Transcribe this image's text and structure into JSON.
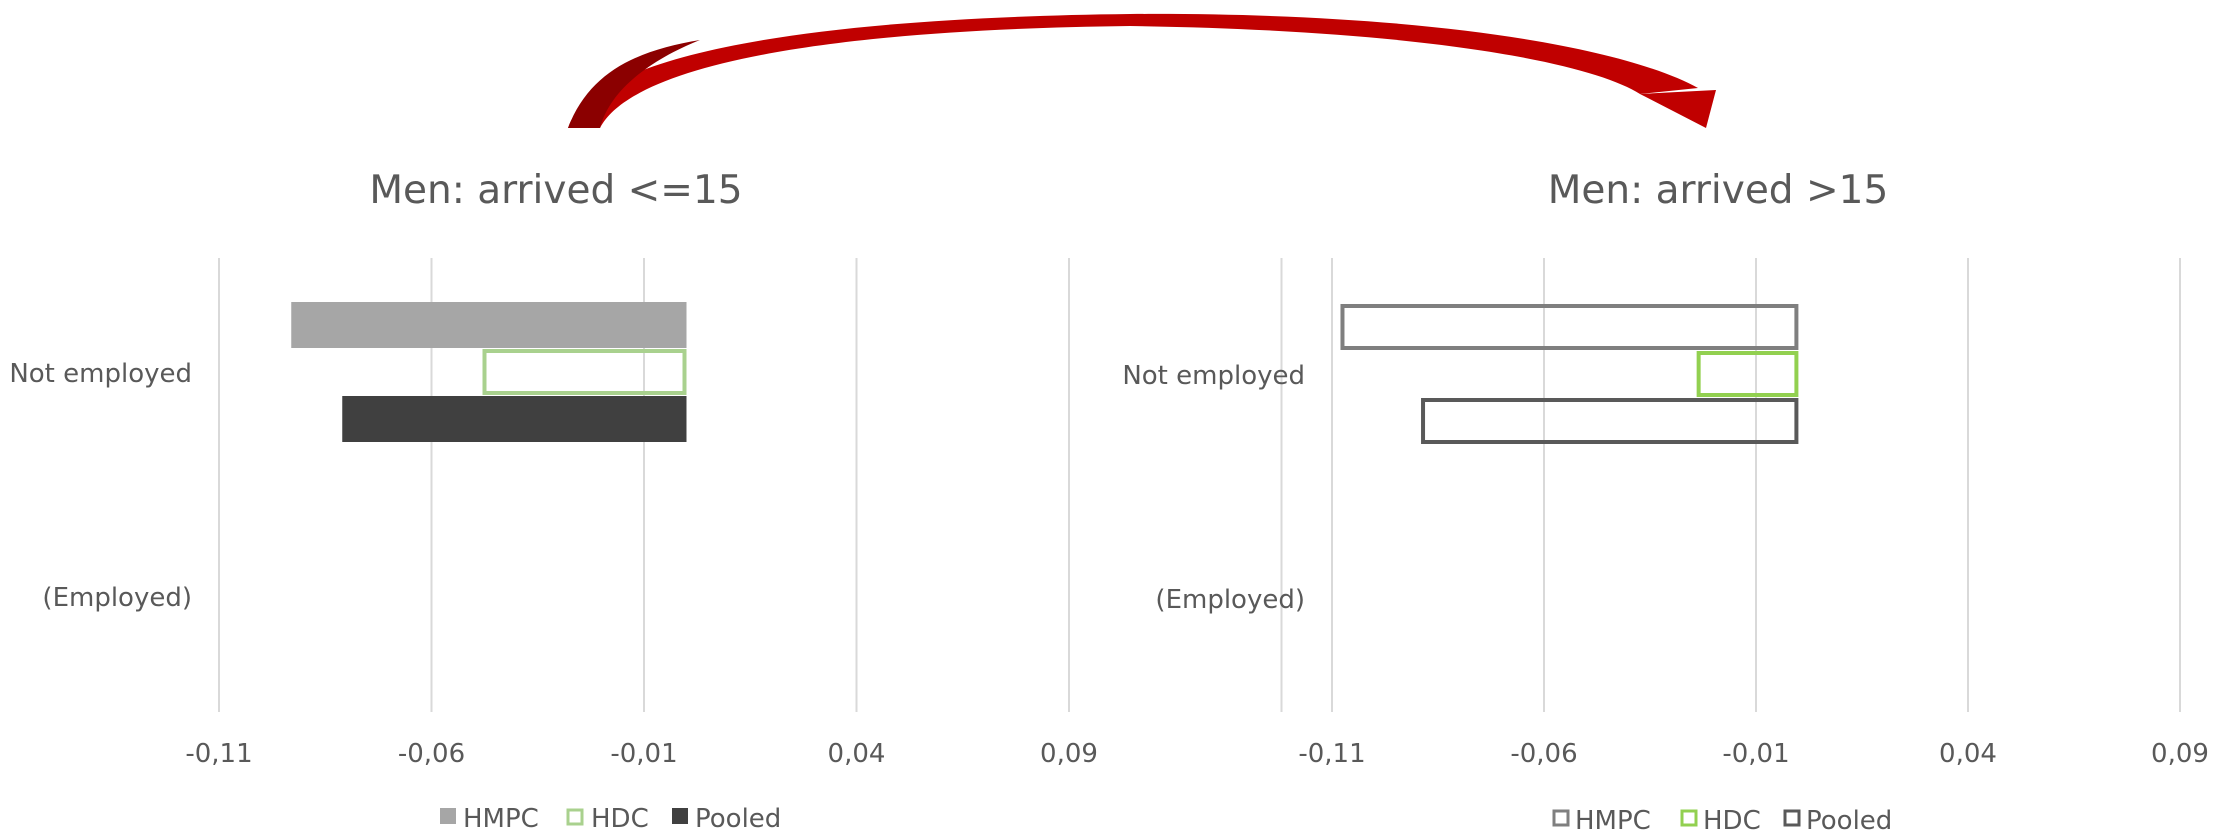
{
  "colors": {
    "grid": "#d9d9d9",
    "text": "#595959",
    "hmpc_fill": "#a6a6a6",
    "hdc_stroke": "#a9d18e",
    "pooled_fill": "#404040",
    "right_hmpc_stroke": "#7f7f7f",
    "right_hdc_stroke": "#92d050",
    "right_pooled_stroke": "#595959",
    "arrow": "#c00000",
    "arrow_dark": "#8b0000"
  },
  "chart_data": [
    {
      "type": "bar",
      "orientation": "horizontal",
      "title": "Men: arrived  <=15",
      "categories": [
        "Not employed",
        "(Employed)"
      ],
      "xlim": [
        -0.11,
        0.14
      ],
      "xticks": [
        -0.11,
        -0.06,
        -0.01,
        0.04,
        0.09
      ],
      "xtick_labels": [
        "-0,11",
        "-0,06",
        "-0,01",
        "0,04",
        "0,09"
      ],
      "grid": true,
      "legend_position": "bottom",
      "series": [
        {
          "name": "HMPC",
          "style": "filled",
          "values": [
            -0.093,
            null
          ]
        },
        {
          "name": "HDC",
          "style": "outline",
          "values": [
            -0.048,
            null
          ]
        },
        {
          "name": "Pooled",
          "style": "filled",
          "values": [
            -0.081,
            null
          ]
        }
      ]
    },
    {
      "type": "bar",
      "orientation": "horizontal",
      "title": "Men: arrived  >15",
      "categories": [
        "Not employed",
        "(Employed)"
      ],
      "xlim": [
        -0.11,
        0.09
      ],
      "xticks": [
        -0.11,
        -0.06,
        -0.01,
        0.04,
        0.09
      ],
      "xtick_labels": [
        "-0,11",
        "-0,06",
        "-0,01",
        "0,04",
        "0,09"
      ],
      "grid": true,
      "legend_position": "bottom",
      "series": [
        {
          "name": "HMPC",
          "style": "outline",
          "values": [
            -0.108,
            null
          ]
        },
        {
          "name": "HDC",
          "style": "outline",
          "values": [
            -0.024,
            null
          ]
        },
        {
          "name": "Pooled",
          "style": "outline",
          "values": [
            -0.089,
            null
          ]
        }
      ]
    }
  ]
}
